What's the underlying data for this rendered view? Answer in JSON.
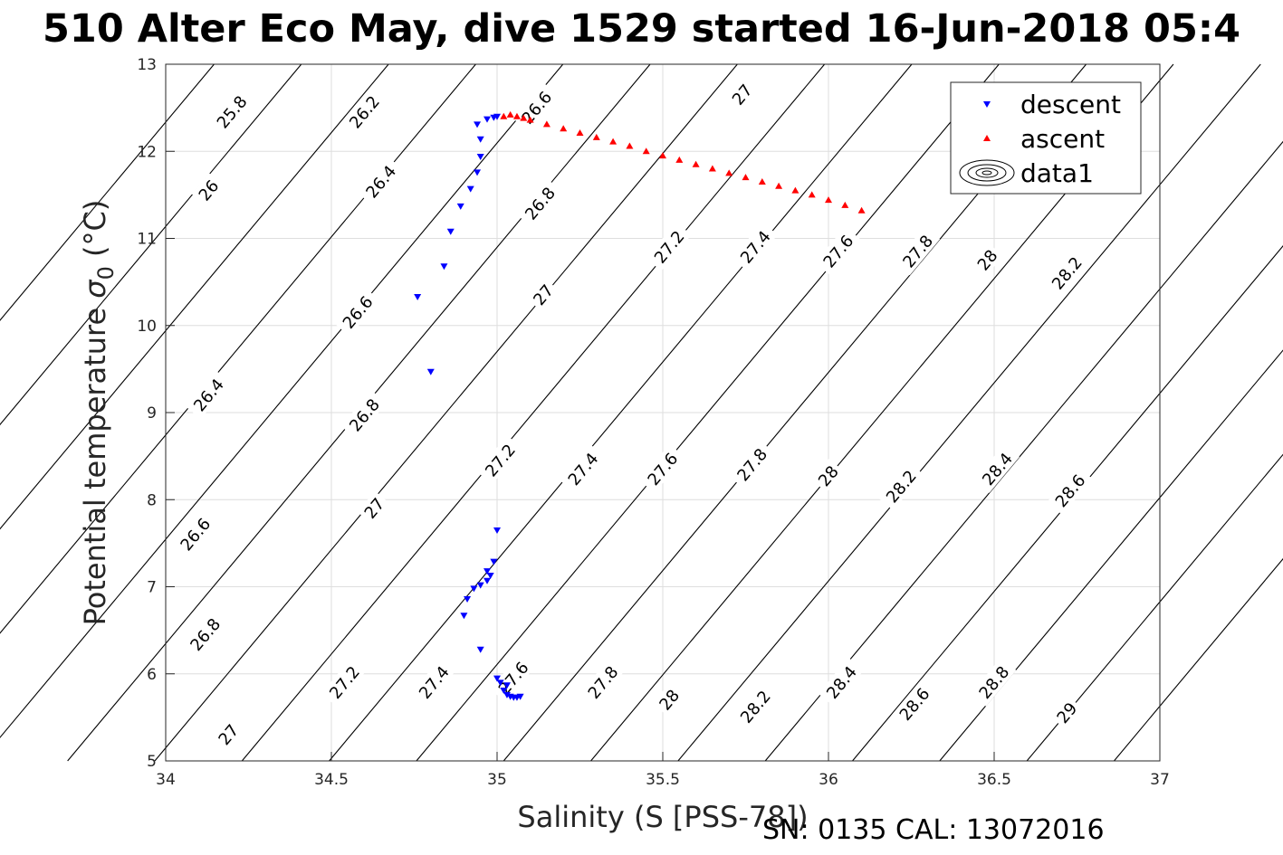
{
  "title": "510 Alter Eco May, dive 1529 started 16-Jun-2018 05:4",
  "footer": "SN: 0135  CAL: 13072016",
  "chart_data": {
    "type": "scatter",
    "title": "510 Alter Eco May, dive 1529 started 16-Jun-2018 05:4",
    "xlabel": "Salinity (S [PSS-78])",
    "ylabel": "Potential temperature σ0 (°C)",
    "xlim": [
      34,
      37
    ],
    "ylim": [
      5,
      13
    ],
    "xticks": [
      34,
      34.5,
      35,
      35.5,
      36,
      36.5,
      37
    ],
    "xtick_labels": [
      "34",
      "34.5",
      "35",
      "35.5",
      "36",
      "36.5",
      "37"
    ],
    "yticks": [
      5,
      6,
      7,
      8,
      9,
      10,
      11,
      12,
      13
    ],
    "ytick_labels": [
      "5",
      "6",
      "7",
      "8",
      "9",
      "10",
      "11",
      "12",
      "13"
    ],
    "grid": true,
    "legend_position": "top-right",
    "legend": [
      "descent",
      "ascent",
      "data1"
    ],
    "series": [
      {
        "name": "descent",
        "marker": "triangle-down",
        "color": "#0000ff",
        "x": [
          35.07,
          35.06,
          35.05,
          35.04,
          35.03,
          35.02,
          35.03,
          35.01,
          35.0,
          34.95,
          34.9,
          34.91,
          34.93,
          34.95,
          34.97,
          34.98,
          34.97,
          34.99,
          35.0,
          34.8,
          34.76,
          34.84,
          34.86,
          34.89,
          34.92,
          34.94,
          34.95,
          34.95,
          34.94,
          34.97,
          34.99,
          35.0
        ],
        "y": [
          5.74,
          5.73,
          5.73,
          5.74,
          5.76,
          5.81,
          5.87,
          5.9,
          5.95,
          6.28,
          6.67,
          6.86,
          6.98,
          7.02,
          7.07,
          7.13,
          7.18,
          7.29,
          7.65,
          9.47,
          10.33,
          10.68,
          11.08,
          11.37,
          11.57,
          11.76,
          11.94,
          12.14,
          12.31,
          12.37,
          12.39,
          12.4
        ]
      },
      {
        "name": "ascent",
        "marker": "triangle-up",
        "color": "#ff0000",
        "x": [
          35.02,
          35.04,
          35.06,
          35.08,
          35.1,
          35.15,
          35.2,
          35.25,
          35.3,
          35.35,
          35.4,
          35.45,
          35.5,
          35.55,
          35.6,
          35.65,
          35.7,
          35.75,
          35.8,
          35.85,
          35.9,
          35.95,
          36.0,
          36.05,
          36.1
        ],
        "y": [
          12.4,
          12.42,
          12.4,
          12.38,
          12.36,
          12.31,
          12.26,
          12.21,
          12.16,
          12.11,
          12.06,
          12.0,
          11.95,
          11.9,
          11.85,
          11.8,
          11.75,
          11.7,
          11.65,
          11.6,
          11.55,
          11.5,
          11.44,
          11.38,
          11.32
        ]
      }
    ],
    "contour_levels": [
      25.8,
      26,
      26.2,
      26.4,
      26.6,
      26.8,
      27,
      27.2,
      27.4,
      27.6,
      27.8,
      28,
      28.2,
      28.4,
      28.6,
      28.8,
      29
    ],
    "contour_labels": [
      {
        "text": "25.8",
        "x": 34.2,
        "y": 12.45
      },
      {
        "text": "26.2",
        "x": 34.6,
        "y": 12.45
      },
      {
        "text": "26.6",
        "x": 35.12,
        "y": 12.5
      },
      {
        "text": "27",
        "x": 35.74,
        "y": 12.65
      },
      {
        "text": "26",
        "x": 34.13,
        "y": 11.55
      },
      {
        "text": "26.4",
        "x": 34.65,
        "y": 11.65
      },
      {
        "text": "26.8",
        "x": 35.13,
        "y": 11.4
      },
      {
        "text": "27.2",
        "x": 35.52,
        "y": 10.9
      },
      {
        "text": "27.4",
        "x": 35.78,
        "y": 10.9
      },
      {
        "text": "27.6",
        "x": 36.03,
        "y": 10.85
      },
      {
        "text": "27.8",
        "x": 36.27,
        "y": 10.85
      },
      {
        "text": "28",
        "x": 36.48,
        "y": 10.75
      },
      {
        "text": "28.2",
        "x": 36.72,
        "y": 10.6
      },
      {
        "text": "26.6",
        "x": 34.58,
        "y": 10.15
      },
      {
        "text": "27",
        "x": 35.14,
        "y": 10.35
      },
      {
        "text": "26.4",
        "x": 34.13,
        "y": 9.2
      },
      {
        "text": "26.8",
        "x": 34.6,
        "y": 8.97
      },
      {
        "text": "27.2",
        "x": 35.01,
        "y": 8.45
      },
      {
        "text": "27.4",
        "x": 35.26,
        "y": 8.35
      },
      {
        "text": "27.6",
        "x": 35.5,
        "y": 8.35
      },
      {
        "text": "27.8",
        "x": 35.77,
        "y": 8.4
      },
      {
        "text": "28",
        "x": 36.0,
        "y": 8.27
      },
      {
        "text": "28.2",
        "x": 36.22,
        "y": 8.15
      },
      {
        "text": "28.4",
        "x": 36.51,
        "y": 8.35
      },
      {
        "text": "28.6",
        "x": 36.73,
        "y": 8.1
      },
      {
        "text": "27",
        "x": 34.63,
        "y": 7.9
      },
      {
        "text": "26.6",
        "x": 34.09,
        "y": 7.6
      },
      {
        "text": "26.8",
        "x": 34.12,
        "y": 6.45
      },
      {
        "text": "27.2",
        "x": 34.54,
        "y": 5.9
      },
      {
        "text": "27.4",
        "x": 34.81,
        "y": 5.9
      },
      {
        "text": "27.6",
        "x": 35.05,
        "y": 5.95
      },
      {
        "text": "27.8",
        "x": 35.32,
        "y": 5.9
      },
      {
        "text": "28",
        "x": 35.52,
        "y": 5.7
      },
      {
        "text": "28.2",
        "x": 35.78,
        "y": 5.62
      },
      {
        "text": "28.4",
        "x": 36.04,
        "y": 5.9
      },
      {
        "text": "28.6",
        "x": 36.26,
        "y": 5.65
      },
      {
        "text": "28.8",
        "x": 36.5,
        "y": 5.9
      },
      {
        "text": "29",
        "x": 36.72,
        "y": 5.55
      },
      {
        "text": "27",
        "x": 34.19,
        "y": 5.3
      }
    ]
  }
}
